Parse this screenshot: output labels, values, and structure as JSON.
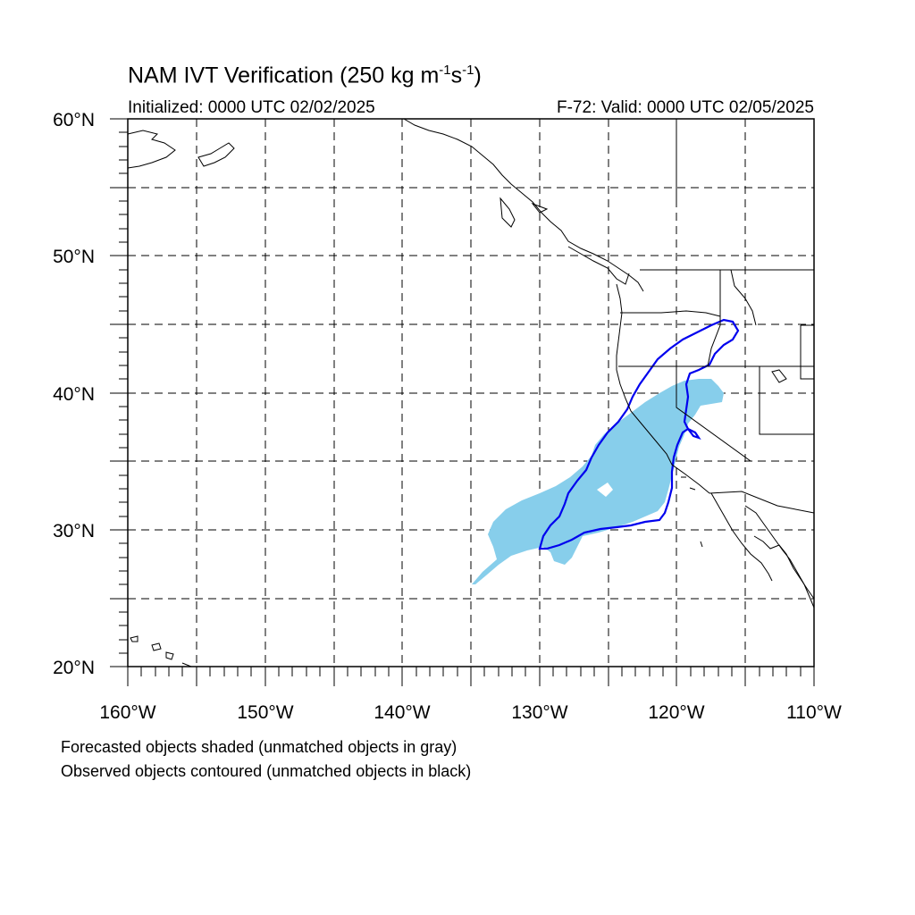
{
  "title": {
    "main": "NAM IVT Verification (250 kg m",
    "sup1": "-1",
    "mid": "s",
    "sup2": "-1",
    "end": ")"
  },
  "initialized": "Initialized: 0000 UTC 02/02/2025",
  "valid": "F-72: Valid: 0000 UTC 02/05/2025",
  "map": {
    "lon_range": [
      -160,
      -110
    ],
    "lat_range": [
      20,
      60
    ],
    "lon_ticks": [
      "160°W",
      "150°W",
      "140°W",
      "130°W",
      "120°W",
      "110°W"
    ],
    "lat_ticks": [
      "20°N",
      "30°N",
      "40°N",
      "50°N",
      "60°N"
    ],
    "grid": "dashed every 5°",
    "forecast_fill_color": "#87ceeb",
    "observed_contour_color": "#0000ee",
    "coastline_color": "#000000"
  },
  "footer": {
    "line1": "Forecasted objects shaded (unmatched objects in gray)",
    "line2": "Observed objects contoured (unmatched objects in black)"
  }
}
